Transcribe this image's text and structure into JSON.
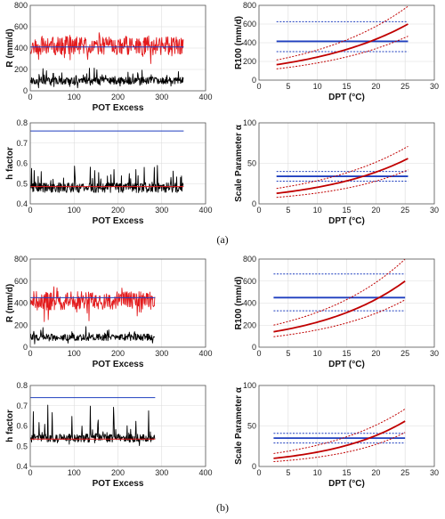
{
  "figure": {
    "panel_labels": [
      "(a)",
      "(b)"
    ]
  },
  "chart_data": [
    {
      "id": "a1",
      "group": "a",
      "type": "line",
      "xlabel": "POT Excess",
      "ylabel": "R (mm/d)",
      "xlim": [
        0,
        400
      ],
      "ylim": [
        0,
        800
      ],
      "xticks": [
        0,
        100,
        200,
        300,
        400
      ],
      "yticks": [
        0,
        200,
        400,
        600,
        800
      ],
      "xtick_labels": [
        "0",
        "100",
        "200",
        "300",
        "400"
      ],
      "ytick_labels": [
        "0",
        "200",
        "400",
        "600",
        "800"
      ],
      "grid": true,
      "series": [
        {
          "kind": "noisy",
          "color": "#e31a1c",
          "n": 350,
          "base": 420,
          "amp": 85,
          "spikes": 50,
          "seed": 11
        },
        {
          "kind": "noisy",
          "color": "#000000",
          "n": 350,
          "base": 95,
          "amp": 35,
          "spikes": 90,
          "seed": 23
        },
        {
          "kind": "hline",
          "color": "#1f3fbf",
          "y": 410,
          "x": [
            0,
            350
          ]
        }
      ]
    },
    {
      "id": "a2",
      "group": "a",
      "type": "line",
      "xlabel": "DPT (°C)",
      "ylabel": "R100 (mm/d)",
      "xlim": [
        0,
        30
      ],
      "ylim": [
        0,
        800
      ],
      "xticks": [
        0,
        5,
        10,
        15,
        20,
        25,
        30
      ],
      "yticks": [
        0,
        200,
        400,
        600,
        800
      ],
      "xtick_labels": [
        "0",
        "5",
        "10",
        "15",
        "20",
        "25",
        "30"
      ],
      "ytick_labels": [
        "0",
        "200",
        "400",
        "600",
        "800"
      ],
      "grid": true,
      "series": [
        {
          "kind": "hline",
          "color": "#1f3fbf",
          "y": 415,
          "x": [
            3,
            25.5
          ],
          "width": 1.8
        },
        {
          "kind": "hline",
          "color": "#1f3fbf",
          "y": 625,
          "x": [
            3,
            25.5
          ],
          "dash": true
        },
        {
          "kind": "hline",
          "color": "#1f3fbf",
          "y": 305,
          "x": [
            3,
            25.5
          ],
          "dash": true
        },
        {
          "kind": "exp",
          "color": "#c00000",
          "x0": 3,
          "x1": 25.5,
          "y0": 165,
          "y1": 600,
          "width": 1.8
        },
        {
          "kind": "exp",
          "color": "#c00000",
          "x0": 3,
          "x1": 25.5,
          "y0": 215,
          "y1": 790,
          "dash": true
        },
        {
          "kind": "exp",
          "color": "#c00000",
          "x0": 3,
          "x1": 25.5,
          "y0": 120,
          "y1": 470,
          "dash": true
        }
      ]
    },
    {
      "id": "a3",
      "group": "a",
      "type": "line",
      "xlabel": "POT Excess",
      "ylabel": "h factor",
      "xlim": [
        0,
        400
      ],
      "ylim": [
        0.4,
        0.8
      ],
      "xticks": [
        0,
        100,
        200,
        300,
        400
      ],
      "yticks": [
        0.4,
        0.5,
        0.6,
        0.7,
        0.8
      ],
      "xtick_labels": [
        "0",
        "100",
        "200",
        "300",
        "400"
      ],
      "ytick_labels": [
        "0.4",
        "0.5",
        "0.6",
        "0.7",
        "0.8"
      ],
      "grid": true,
      "series": [
        {
          "kind": "hline",
          "color": "#1f3fbf",
          "y": 0.76,
          "x": [
            0,
            350
          ]
        },
        {
          "kind": "noisy",
          "color": "#000000",
          "n": 350,
          "base": 0.48,
          "amp": 0.025,
          "spikes": 0.12,
          "seed": 37
        },
        {
          "kind": "hline",
          "color": "#e31a1c",
          "y": 0.485,
          "x": [
            0,
            350
          ]
        }
      ]
    },
    {
      "id": "a4",
      "group": "a",
      "type": "line",
      "xlabel": "DPT (°C)",
      "ylabel": "Scale Parameter α",
      "xlim": [
        0,
        30
      ],
      "ylim": [
        0,
        100
      ],
      "xticks": [
        0,
        5,
        10,
        15,
        20,
        25,
        30
      ],
      "yticks": [
        0,
        50,
        100
      ],
      "xtick_labels": [
        "0",
        "5",
        "10",
        "15",
        "20",
        "25",
        "30"
      ],
      "ytick_labels": [
        "0",
        "50",
        "100"
      ],
      "grid": true,
      "series": [
        {
          "kind": "hline",
          "color": "#1f3fbf",
          "y": 34,
          "x": [
            3,
            25.5
          ],
          "width": 1.8
        },
        {
          "kind": "hline",
          "color": "#1f3fbf",
          "y": 40,
          "x": [
            3,
            25.5
          ],
          "dash": true
        },
        {
          "kind": "hline",
          "color": "#1f3fbf",
          "y": 28,
          "x": [
            3,
            25.5
          ],
          "dash": true
        },
        {
          "kind": "exp",
          "color": "#c00000",
          "x0": 3,
          "x1": 25.5,
          "y0": 13,
          "y1": 56,
          "width": 1.8
        },
        {
          "kind": "exp",
          "color": "#c00000",
          "x0": 3,
          "x1": 25.5,
          "y0": 19,
          "y1": 71,
          "dash": true
        },
        {
          "kind": "exp",
          "color": "#c00000",
          "x0": 3,
          "x1": 25.5,
          "y0": 8,
          "y1": 42,
          "dash": true
        }
      ]
    },
    {
      "id": "b1",
      "group": "b",
      "type": "line",
      "xlabel": "POT Excess",
      "ylabel": "R (mm/d)",
      "xlim": [
        0,
        400
      ],
      "ylim": [
        0,
        800
      ],
      "xticks": [
        0,
        100,
        200,
        300,
        400
      ],
      "yticks": [
        0,
        200,
        400,
        600,
        800
      ],
      "xtick_labels": [
        "0",
        "100",
        "200",
        "300",
        "400"
      ],
      "ytick_labels": [
        "0",
        "200",
        "400",
        "600",
        "800"
      ],
      "grid": true,
      "series": [
        {
          "kind": "noisy",
          "color": "#e31a1c",
          "n": 285,
          "base": 420,
          "amp": 85,
          "spikes": 60,
          "seed": 51
        },
        {
          "kind": "noisy",
          "color": "#000000",
          "n": 285,
          "base": 90,
          "amp": 30,
          "spikes": 80,
          "seed": 63
        },
        {
          "kind": "hline",
          "color": "#1f3fbf",
          "y": 450,
          "x": [
            0,
            285
          ]
        }
      ]
    },
    {
      "id": "b2",
      "group": "b",
      "type": "line",
      "xlabel": "DPT (°C)",
      "ylabel": "R100 (mm/d)",
      "xlim": [
        0,
        30
      ],
      "ylim": [
        0,
        800
      ],
      "xticks": [
        0,
        5,
        10,
        15,
        20,
        25,
        30
      ],
      "yticks": [
        0,
        200,
        400,
        600,
        800
      ],
      "xtick_labels": [
        "0",
        "5",
        "10",
        "15",
        "20",
        "25",
        "30"
      ],
      "ytick_labels": [
        "0",
        "200",
        "400",
        "600",
        "800"
      ],
      "grid": true,
      "series": [
        {
          "kind": "hline",
          "color": "#1f3fbf",
          "y": 450,
          "x": [
            2.5,
            25
          ],
          "width": 1.8
        },
        {
          "kind": "hline",
          "color": "#1f3fbf",
          "y": 665,
          "x": [
            2.5,
            25
          ],
          "dash": true
        },
        {
          "kind": "hline",
          "color": "#1f3fbf",
          "y": 330,
          "x": [
            2.5,
            25
          ],
          "dash": true
        },
        {
          "kind": "exp",
          "color": "#c00000",
          "x0": 2.5,
          "x1": 25,
          "y0": 140,
          "y1": 600,
          "width": 1.8
        },
        {
          "kind": "exp",
          "color": "#c00000",
          "x0": 2.5,
          "x1": 25,
          "y0": 200,
          "y1": 800,
          "dash": true
        },
        {
          "kind": "exp",
          "color": "#c00000",
          "x0": 2.5,
          "x1": 25,
          "y0": 95,
          "y1": 430,
          "dash": true
        }
      ]
    },
    {
      "id": "b3",
      "group": "b",
      "type": "line",
      "xlabel": "POT Excess",
      "ylabel": "h factor",
      "xlim": [
        0,
        400
      ],
      "ylim": [
        0.4,
        0.8
      ],
      "xticks": [
        0,
        100,
        200,
        300,
        400
      ],
      "yticks": [
        0.4,
        0.5,
        0.6,
        0.7,
        0.8
      ],
      "xtick_labels": [
        "0",
        "100",
        "200",
        "300",
        "400"
      ],
      "ytick_labels": [
        "0.4",
        "0.5",
        "0.6",
        "0.7",
        "0.8"
      ],
      "grid": true,
      "series": [
        {
          "kind": "hline",
          "color": "#1f3fbf",
          "y": 0.74,
          "x": [
            0,
            285
          ]
        },
        {
          "kind": "noisy",
          "color": "#000000",
          "n": 285,
          "base": 0.54,
          "amp": 0.02,
          "spikes": 0.15,
          "seed": 77
        },
        {
          "kind": "hline",
          "color": "#e31a1c",
          "y": 0.535,
          "x": [
            0,
            285
          ]
        }
      ]
    },
    {
      "id": "b4",
      "group": "b",
      "type": "line",
      "xlabel": "DPT (°C)",
      "ylabel": "Scale Parameter α",
      "xlim": [
        0,
        30
      ],
      "ylim": [
        0,
        100
      ],
      "xticks": [
        0,
        5,
        10,
        15,
        20,
        25,
        30
      ],
      "yticks": [
        0,
        50,
        100
      ],
      "xtick_labels": [
        "0",
        "5",
        "10",
        "15",
        "20",
        "25",
        "30"
      ],
      "ytick_labels": [
        "0",
        "50",
        "100"
      ],
      "grid": true,
      "series": [
        {
          "kind": "hline",
          "color": "#1f3fbf",
          "y": 35,
          "x": [
            2.5,
            25
          ],
          "width": 1.8
        },
        {
          "kind": "hline",
          "color": "#1f3fbf",
          "y": 41,
          "x": [
            2.5,
            25
          ],
          "dash": true
        },
        {
          "kind": "hline",
          "color": "#1f3fbf",
          "y": 29,
          "x": [
            2.5,
            25
          ],
          "dash": true
        },
        {
          "kind": "exp",
          "color": "#c00000",
          "x0": 2.5,
          "x1": 25,
          "y0": 10,
          "y1": 56,
          "width": 1.8
        },
        {
          "kind": "exp",
          "color": "#c00000",
          "x0": 2.5,
          "x1": 25,
          "y0": 16,
          "y1": 71,
          "dash": true
        },
        {
          "kind": "exp",
          "color": "#c00000",
          "x0": 2.5,
          "x1": 25,
          "y0": 6,
          "y1": 42,
          "dash": true
        }
      ]
    }
  ]
}
